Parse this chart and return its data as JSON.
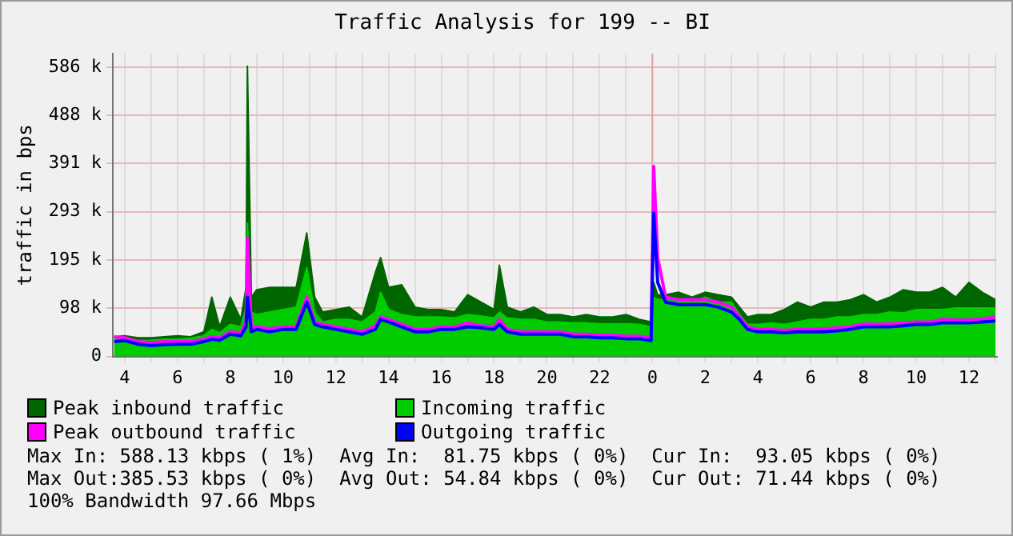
{
  "chart_data": {
    "type": "area",
    "title": "Traffic Analysis for 199 -- BI",
    "ylabel": "traffic in bps",
    "x": [
      "--01-01T03:36",
      "--01-01T04:00",
      "--01-01T04:30",
      "--01-01T05:00",
      "--01-01T05:30",
      "--01-01T06:00",
      "--01-01T06:30",
      "--01-01T07:00",
      "--01-01T07:18",
      "--01-01T07:36",
      "--01-01T08:00",
      "--01-01T08:24",
      "--01-01T08:36",
      "--01-01T08:39",
      "--01-01T08:48",
      "--01-01T09:00",
      "--01-01T09:30",
      "--01-01T10:00",
      "--01-01T10:30",
      "--01-01T10:54",
      "--01-01T11:12",
      "--01-01T11:30",
      "--01-01T12:00",
      "--01-01T12:30",
      "--01-01T13:00",
      "--01-01T13:30",
      "--01-01T13:42",
      "--01-01T14:00",
      "--01-01T14:30",
      "--01-01T15:00",
      "--01-01T15:30",
      "--01-01T16:00",
      "--01-01T16:30",
      "--01-01T17:00",
      "--01-01T17:30",
      "--01-01T18:00",
      "--01-01T18:12",
      "--01-01T18:30",
      "--01-01T19:00",
      "--01-01T19:30",
      "--01-01T20:00",
      "--01-01T20:30",
      "--01-01T21:00",
      "--01-01T21:30",
      "--01-01T22:00",
      "--01-01T22:30",
      "--01-01T23:00",
      "--01-01T23:30",
      "--01-01T23:57",
      "--01-02T00:03",
      "--01-02T00:12",
      "--01-02T00:30",
      "--01-02T01:00",
      "--01-02T01:30",
      "--01-02T02:00",
      "--01-02T02:30",
      "--01-02T03:00",
      "--01-02T03:18",
      "--01-02T03:36",
      "--01-02T04:00",
      "--01-02T04:30",
      "--01-02T05:00",
      "--01-02T05:30",
      "--01-02T06:00",
      "--01-02T06:30",
      "--01-02T07:00",
      "--01-02T07:30",
      "--01-02T08:00",
      "--01-02T08:30",
      "--01-02T09:00",
      "--01-02T09:30",
      "--01-02T10:00",
      "--01-02T10:30",
      "--01-02T11:00",
      "--01-02T11:30",
      "--01-02T12:00",
      "--01-02T12:30",
      "--01-02T13:00"
    ],
    "series": [
      {
        "name": "Peak inbound traffic",
        "color": "#006600",
        "values": [
          40,
          42,
          38,
          38,
          40,
          42,
          40,
          50,
          120,
          60,
          120,
          75,
          140,
          588,
          120,
          135,
          140,
          140,
          140,
          250,
          120,
          90,
          95,
          100,
          80,
          170,
          200,
          140,
          145,
          100,
          95,
          95,
          90,
          125,
          110,
          95,
          185,
          100,
          90,
          100,
          85,
          85,
          80,
          85,
          80,
          80,
          85,
          75,
          70,
          150,
          125,
          125,
          130,
          120,
          130,
          125,
          120,
          100,
          80,
          85,
          85,
          95,
          110,
          100,
          110,
          110,
          115,
          125,
          110,
          120,
          135,
          130,
          130,
          140,
          120,
          150,
          130,
          115
        ]
      },
      {
        "name": "Incoming traffic",
        "color": "#00cc00",
        "values": [
          38,
          38,
          32,
          33,
          35,
          35,
          37,
          42,
          55,
          48,
          65,
          60,
          100,
          270,
          90,
          85,
          90,
          95,
          100,
          180,
          90,
          70,
          75,
          75,
          70,
          90,
          130,
          95,
          85,
          80,
          80,
          80,
          78,
          85,
          82,
          78,
          90,
          78,
          75,
          75,
          70,
          70,
          68,
          68,
          66,
          66,
          66,
          65,
          60,
          120,
          115,
          115,
          115,
          110,
          120,
          110,
          110,
          85,
          65,
          65,
          68,
          65,
          70,
          75,
          75,
          80,
          80,
          85,
          85,
          90,
          88,
          95,
          95,
          95,
          98,
          98,
          98,
          98
        ]
      },
      {
        "name": "Peak outbound traffic",
        "type": "line",
        "color": "#ff00ff",
        "values": [
          40,
          38,
          30,
          28,
          30,
          30,
          30,
          35,
          40,
          38,
          50,
          48,
          70,
          240,
          58,
          60,
          56,
          60,
          60,
          120,
          70,
          65,
          60,
          55,
          50,
          62,
          80,
          75,
          65,
          55,
          55,
          60,
          60,
          68,
          62,
          60,
          75,
          55,
          50,
          50,
          50,
          50,
          45,
          45,
          43,
          43,
          41,
          41,
          38,
          385,
          200,
          120,
          115,
          115,
          115,
          110,
          100,
          80,
          60,
          55,
          55,
          53,
          55,
          55,
          56,
          58,
          60,
          66,
          65,
          66,
          68,
          70,
          70,
          75,
          74,
          74,
          76,
          80
        ]
      },
      {
        "name": "Outgoing traffic",
        "type": "line",
        "color": "#0000ff",
        "values": [
          30,
          32,
          25,
          22,
          24,
          25,
          25,
          30,
          35,
          33,
          45,
          42,
          60,
          120,
          50,
          55,
          50,
          55,
          55,
          110,
          65,
          60,
          55,
          50,
          45,
          55,
          75,
          70,
          60,
          50,
          50,
          55,
          55,
          60,
          58,
          55,
          65,
          50,
          45,
          45,
          45,
          45,
          40,
          40,
          38,
          38,
          36,
          36,
          32,
          290,
          150,
          110,
          105,
          105,
          105,
          100,
          90,
          75,
          55,
          50,
          50,
          48,
          50,
          50,
          50,
          52,
          55,
          60,
          60,
          60,
          62,
          65,
          65,
          68,
          68,
          68,
          70,
          72
        ]
      }
    ],
    "xlim": [
      "--01-01T03:33",
      "--01-02T13:03"
    ],
    "xticks": [
      {
        "value": "--01-01T04:00",
        "label": "4"
      },
      {
        "value": "--01-01T05:00",
        "label": null
      },
      {
        "value": "--01-01T06:00",
        "label": "6"
      },
      {
        "value": "--01-01T07:00",
        "label": null
      },
      {
        "value": "--01-01T08:00",
        "label": "8"
      },
      {
        "value": "--01-01T09:00",
        "label": null
      },
      {
        "value": "--01-01T10:00",
        "label": "10"
      },
      {
        "value": "--01-01T11:00",
        "label": null
      },
      {
        "value": "--01-01T12:00",
        "label": "12"
      },
      {
        "value": "--01-01T13:00",
        "label": null
      },
      {
        "value": "--01-01T14:00",
        "label": "14"
      },
      {
        "value": "--01-01T15:00",
        "label": null
      },
      {
        "value": "--01-01T16:00",
        "label": "16"
      },
      {
        "value": "--01-01T17:00",
        "label": null
      },
      {
        "value": "--01-01T18:00",
        "label": "18"
      },
      {
        "value": "--01-01T19:00",
        "label": null
      },
      {
        "value": "--01-01T20:00",
        "label": "20"
      },
      {
        "value": "--01-01T21:00",
        "label": null
      },
      {
        "value": "--01-01T22:00",
        "label": "22"
      },
      {
        "value": "--01-01T23:00",
        "label": null
      },
      {
        "value": "--01-02T00:00",
        "label": "0"
      },
      {
        "value": "--01-02T01:00",
        "label": null
      },
      {
        "value": "--01-02T02:00",
        "label": "2"
      },
      {
        "value": "--01-02T03:00",
        "label": null
      },
      {
        "value": "--01-02T04:00",
        "label": "4"
      },
      {
        "value": "--01-02T05:00",
        "label": null
      },
      {
        "value": "--01-02T06:00",
        "label": "6"
      },
      {
        "value": "--01-02T07:00",
        "label": null
      },
      {
        "value": "--01-02T08:00",
        "label": "8"
      },
      {
        "value": "--01-02T09:00",
        "label": null
      },
      {
        "value": "--01-02T10:00",
        "label": "10"
      },
      {
        "value": "--01-02T11:00",
        "label": null
      },
      {
        "value": "--01-02T12:00",
        "label": "12"
      },
      {
        "value": "--01-02T13:00",
        "label": null
      }
    ],
    "ylim": [
      0,
      613
    ],
    "yticks": [
      0,
      {
        "value": 97.66,
        "label": "98 k"
      },
      {
        "value": 195.31,
        "label": "195 k"
      },
      {
        "value": 292.97,
        "label": "293 k"
      },
      {
        "value": 390.63,
        "label": "391 k"
      },
      {
        "value": 488.28,
        "label": "488 k"
      },
      {
        "value": 585.94,
        "label": "586 k"
      }
    ],
    "ref_lines": [
      {
        "axis": "x",
        "value": "--01-02T00:00",
        "color": "#e8a0a0"
      }
    ],
    "grid": true,
    "legend": "bottom",
    "annotations": [
      "Max In: 588.13 kbps ( 1%)  Avg In:  81.75 kbps ( 0%)  Cur In:  93.05 kbps ( 0%)",
      "Max Out:385.53 kbps ( 0%)  Avg Out: 54.84 kbps ( 0%)  Cur Out: 71.44 kbps ( 0%)",
      "100% Bandwidth 97.66 Mbps"
    ]
  }
}
